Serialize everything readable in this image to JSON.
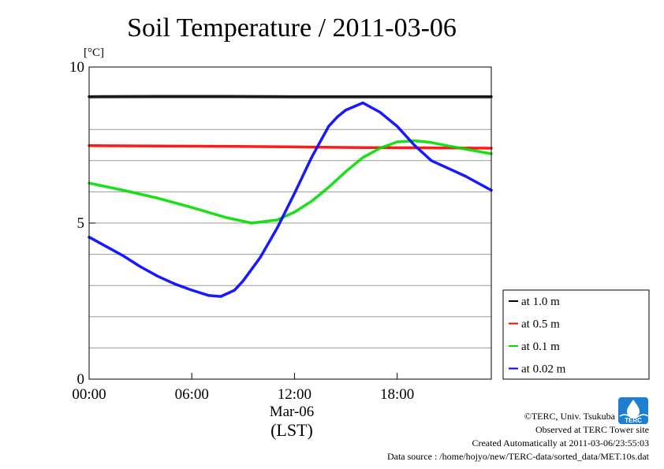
{
  "chart_data": {
    "type": "line",
    "title": "Soil Temperature / 2011-03-06",
    "ylabel": "[°C]",
    "xlabel_date": "Mar-06",
    "xlabel": "(LST)",
    "ylim": [
      0,
      10
    ],
    "xlim_hours": [
      0,
      23.5
    ],
    "y_ticks": [
      {
        "value": 0,
        "label": "0"
      },
      {
        "value": 5,
        "label": "5"
      },
      {
        "value": 10,
        "label": "10"
      }
    ],
    "y_grid_step": 1,
    "x_ticks": [
      {
        "value": 0,
        "label": "00:00"
      },
      {
        "value": 6,
        "label": "06:00"
      },
      {
        "value": 12,
        "label": "12:00"
      },
      {
        "value": 18,
        "label": "18:00"
      }
    ],
    "legend_position": "right, below plot top",
    "series": [
      {
        "name": "at 1.0 m",
        "color": "#000000",
        "x": [
          0,
          4,
          8,
          12,
          16,
          20,
          23.5
        ],
        "y": [
          9.05,
          9.06,
          9.06,
          9.05,
          9.05,
          9.05,
          9.05
        ]
      },
      {
        "name": "at 0.5 m",
        "color": "#ff0000",
        "x": [
          0,
          4,
          8,
          12,
          16,
          20,
          23.5
        ],
        "y": [
          7.48,
          7.47,
          7.46,
          7.44,
          7.42,
          7.41,
          7.4
        ]
      },
      {
        "name": "at 0.1 m",
        "color": "#00dd00",
        "x": [
          0,
          2,
          4,
          6,
          8,
          9.5,
          11,
          12,
          13,
          14,
          15,
          16,
          17,
          18,
          19,
          20,
          21,
          22,
          23.5
        ],
        "y": [
          6.28,
          6.05,
          5.8,
          5.5,
          5.18,
          5.0,
          5.1,
          5.35,
          5.7,
          6.15,
          6.65,
          7.1,
          7.4,
          7.6,
          7.64,
          7.58,
          7.47,
          7.37,
          7.22
        ]
      },
      {
        "name": "at 0.02 m",
        "color": "#0000ff",
        "x": [
          0,
          1,
          2,
          3,
          4,
          5,
          6,
          7,
          7.7,
          8.5,
          9,
          10,
          11,
          12,
          13,
          14,
          14.5,
          15,
          16,
          17,
          18,
          19,
          20,
          21,
          22,
          23.5
        ],
        "y": [
          4.55,
          4.25,
          3.95,
          3.6,
          3.3,
          3.05,
          2.85,
          2.68,
          2.65,
          2.85,
          3.15,
          3.9,
          4.85,
          5.95,
          7.1,
          8.1,
          8.4,
          8.62,
          8.85,
          8.55,
          8.1,
          7.5,
          7.0,
          6.75,
          6.5,
          6.05
        ]
      }
    ]
  },
  "footer": {
    "copyright": "©TERC, Univ. Tsukuba",
    "observed": "Observed at TERC Tower site",
    "created": "Created Automatically at 2011-03-06/23:55:03",
    "source": "Data source : /home/hojyo/new/TERC-data/sorted_data/MET.10s.dat",
    "logo_text": "TERC"
  }
}
